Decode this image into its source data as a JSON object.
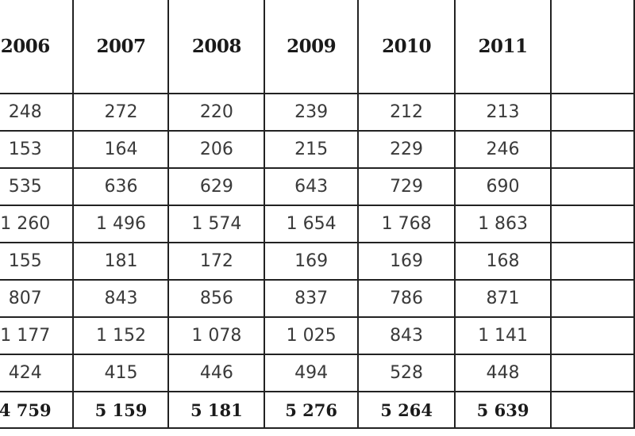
{
  "table": {
    "headers": [
      "2006",
      "2007",
      "2008",
      "2009",
      "2010",
      "2011"
    ],
    "rows": [
      [
        "248",
        "272",
        "220",
        "239",
        "212",
        "213"
      ],
      [
        "153",
        "164",
        "206",
        "215",
        "229",
        "246"
      ],
      [
        "535",
        "636",
        "629",
        "643",
        "729",
        "690"
      ],
      [
        "1 260",
        "1 496",
        "1 574",
        "1 654",
        "1 768",
        "1 863"
      ],
      [
        "155",
        "181",
        "172",
        "169",
        "169",
        "168"
      ],
      [
        "807",
        "843",
        "856",
        "837",
        "786",
        "871"
      ],
      [
        "1 177",
        "1 152",
        "1 078",
        "1 025",
        "843",
        "1 141"
      ],
      [
        "424",
        "415",
        "446",
        "494",
        "528",
        "448"
      ]
    ],
    "totals": [
      "4 759",
      "5 159",
      "5 181",
      "5 276",
      "5 264",
      "5 639"
    ]
  }
}
